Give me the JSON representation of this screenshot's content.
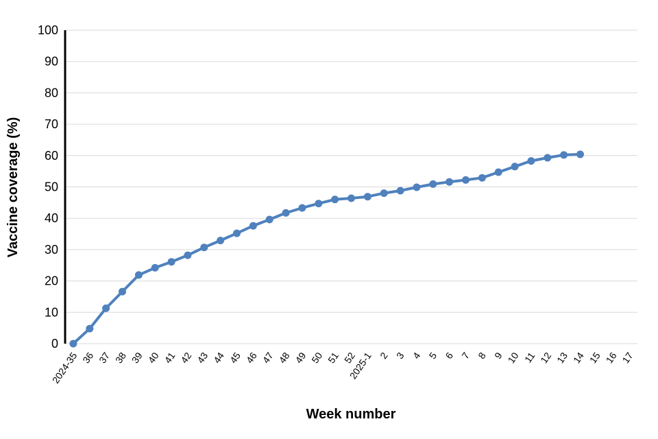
{
  "chart_data": {
    "type": "line",
    "title": "",
    "xlabel": "Week number",
    "ylabel": "Vaccine coverage (%)",
    "categories": [
      "2024-35",
      "36",
      "37",
      "38",
      "39",
      "40",
      "41",
      "42",
      "43",
      "44",
      "45",
      "46",
      "47",
      "48",
      "49",
      "50",
      "51",
      "52",
      "2025-1",
      "2",
      "3",
      "4",
      "5",
      "6",
      "7",
      "8",
      "9",
      "10",
      "11",
      "12",
      "13",
      "14",
      "15",
      "16",
      "17"
    ],
    "series": [
      {
        "name": "Vaccine coverage",
        "values": [
          0,
          4.8,
          11.3,
          16.6,
          21.9,
          24.2,
          26.1,
          28.2,
          30.7,
          32.9,
          35.2,
          37.6,
          39.6,
          41.7,
          43.3,
          44.7,
          46.0,
          46.4,
          46.9,
          48.0,
          48.8,
          49.9,
          50.9,
          51.6,
          52.2,
          52.9,
          54.7,
          56.5,
          58.3,
          59.3,
          60.2,
          60.4,
          null,
          null,
          null
        ]
      }
    ],
    "ylim": [
      0,
      100
    ],
    "ytick_step": 10,
    "ytick_labels": [
      "0",
      "10",
      "20",
      "30",
      "40",
      "50",
      "60",
      "70",
      "80",
      "90",
      "100"
    ],
    "grid": "horizontal-only",
    "legend": "none",
    "line_color": "#4F81BD",
    "marker": "circle",
    "marker_color": "#4F81BD",
    "gridline_color": "#D9D9D9",
    "axis_line_color": "#000000",
    "x_label_rotation_deg": -55
  }
}
